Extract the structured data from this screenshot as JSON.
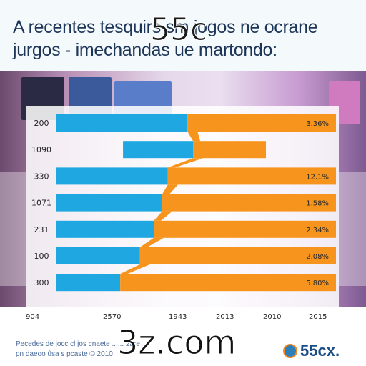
{
  "header": {
    "title_line1": "A recentes tesquirs sm jogos ne ocrane",
    "title_line2": "jurgos - imechandas ue martondo:",
    "watermark": "55c"
  },
  "chart_data": {
    "type": "bar",
    "orientation": "horizontal",
    "stacked": true,
    "categories": [
      "200",
      "1090",
      "330",
      "1071",
      "231",
      "100",
      "300"
    ],
    "percent_labels": [
      "3.36%",
      "",
      "12.1%",
      "1.58%",
      "2.34%",
      "2.08%",
      "5.80%"
    ],
    "x_ticks": [
      "904",
      "2570",
      "1943",
      "2013",
      "2010",
      "2015"
    ],
    "series": [
      {
        "color": "#1ea7e0",
        "segments": [
          [
            0,
            0.47
          ],
          [
            0.24,
            0.49
          ],
          [
            0,
            0.4
          ],
          [
            0,
            0.38
          ],
          [
            0,
            0.35
          ],
          [
            0,
            0.3
          ],
          [
            0,
            0.23
          ]
        ]
      },
      {
        "color": "#f7941d",
        "segments": [
          [
            0.47,
            1.0
          ],
          [
            0.49,
            0.75
          ],
          [
            0.4,
            1.0
          ],
          [
            0.38,
            1.0
          ],
          [
            0.35,
            1.0
          ],
          [
            0.3,
            1.0
          ],
          [
            0.23,
            1.0
          ]
        ]
      }
    ],
    "xlim": [
      0,
      1
    ]
  },
  "footer": {
    "line1": "Pecedes de jocc cl jos cnaete ...... 2are",
    "line2": "pn daeoo ûsa s pcaste © 2010"
  },
  "watermark_bottom": "3z.com",
  "brand": {
    "text": "55cx.",
    "icon": "brand-logo-icon"
  }
}
